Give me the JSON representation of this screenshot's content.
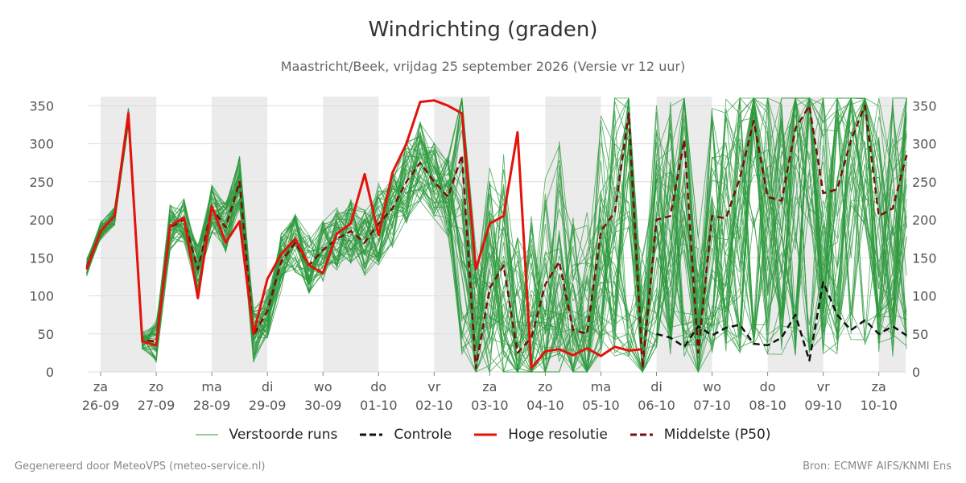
{
  "header": {
    "title": "Windrichting (graden)",
    "subtitle": "Maastricht/Beek, vrijdag 25 september 2026 (Versie vr 12 uur)"
  },
  "footer": {
    "left": "Gegenereerd door MeteoVPS (meteo-service.nl)",
    "right": "Bron: ECMWF AIFS/KNMI Ens"
  },
  "colors": {
    "ensemble": "#2e9a3e",
    "control": "#111111",
    "hires": "#e3120b",
    "median": "#7a0d0d",
    "shade": "#ebebeb",
    "grid": "#dddddd"
  },
  "legend": [
    {
      "key": "ensemble",
      "label": "Verstoorde runs"
    },
    {
      "key": "control",
      "label": "Controle"
    },
    {
      "key": "hires",
      "label": "Hoge resolutie"
    },
    {
      "key": "median",
      "label": "Middelste (P50)"
    }
  ],
  "chart_data": {
    "type": "line",
    "x_unit": "days from 26-09 00:00 (tick = 00 UTC of each day)",
    "xlim": [
      -0.25,
      14.6
    ],
    "ylim": [
      0,
      370
    ],
    "yticks": [
      0,
      50,
      100,
      150,
      200,
      250,
      300,
      350
    ],
    "grid": true,
    "legend_position": "bottom",
    "x_tick_positions": [
      0,
      1,
      2,
      3,
      4,
      5,
      6,
      7,
      8,
      9,
      10,
      11,
      12,
      13,
      14
    ],
    "x_tick_labels": [
      [
        "za",
        "26-09"
      ],
      [
        "zo",
        "27-09"
      ],
      [
        "ma",
        "28-09"
      ],
      [
        "di",
        "29-09"
      ],
      [
        "wo",
        "30-09"
      ],
      [
        "do",
        "01-10"
      ],
      [
        "vr",
        "02-10"
      ],
      [
        "za",
        "03-10"
      ],
      [
        "zo",
        "04-10"
      ],
      [
        "ma",
        "05-10"
      ],
      [
        "di",
        "06-10"
      ],
      [
        "wo",
        "07-10"
      ],
      [
        "do",
        "08-10"
      ],
      [
        "vr",
        "09-10"
      ],
      [
        "za",
        "10-10"
      ]
    ],
    "shaded_days": [
      0,
      2,
      4,
      6,
      8,
      10,
      12,
      14
    ],
    "series": [
      {
        "name": "Hoge resolutie",
        "key": "hires",
        "x": [
          -0.25,
          0,
          0.25,
          0.5,
          0.75,
          1,
          1.25,
          1.5,
          1.75,
          2,
          2.25,
          2.5,
          2.75,
          3,
          3.25,
          3.5,
          3.75,
          4,
          4.25,
          4.5,
          4.75,
          5,
          5.25,
          5.5,
          5.75,
          6,
          6.25,
          6.5,
          6.75,
          7,
          7.25,
          7.5,
          7.75,
          8,
          8.25,
          8.5,
          8.75,
          9,
          9.25,
          9.5,
          9.75
        ],
        "values": [
          135,
          185,
          205,
          340,
          40,
          35,
          192,
          203,
          97,
          218,
          170,
          198,
          50,
          122,
          155,
          175,
          140,
          130,
          182,
          195,
          260,
          180,
          262,
          300,
          355,
          357,
          350,
          340,
          135,
          195,
          205,
          315,
          5,
          27,
          30,
          22,
          31,
          21,
          33,
          28,
          30
        ]
      },
      {
        "name": "Middelste (P50)",
        "key": "median",
        "x": [
          -0.25,
          0,
          0.25,
          0.5,
          0.75,
          1,
          1.25,
          1.5,
          1.75,
          2,
          2.25,
          2.5,
          2.75,
          3,
          3.25,
          3.5,
          3.75,
          4,
          4.25,
          4.5,
          4.75,
          5,
          5.25,
          5.5,
          5.75,
          6,
          6.25,
          6.5,
          6.75,
          7,
          7.25,
          7.5,
          7.75,
          8,
          8.25,
          8.5,
          8.75,
          9,
          9.25,
          9.5,
          9.75,
          10,
          10.25,
          10.5,
          10.75,
          11,
          11.25,
          11.5,
          11.75,
          12,
          12.25,
          12.5,
          12.75,
          13,
          13.25,
          13.5,
          13.75,
          14,
          14.25,
          14.5
        ],
        "values": [
          138,
          185,
          205,
          335,
          42,
          40,
          190,
          200,
          135,
          215,
          190,
          250,
          48,
          80,
          145,
          170,
          140,
          160,
          175,
          185,
          170,
          195,
          215,
          250,
          275,
          250,
          230,
          285,
          5,
          110,
          140,
          25,
          45,
          115,
          145,
          55,
          50,
          185,
          210,
          340,
          5,
          200,
          205,
          305,
          25,
          205,
          202,
          255,
          330,
          230,
          225,
          320,
          350,
          235,
          240,
          305,
          350,
          205,
          215,
          285
        ]
      },
      {
        "name": "Controle",
        "key": "control",
        "x": [
          10,
          10.25,
          10.5,
          10.75,
          11,
          11.25,
          11.5,
          11.75,
          12,
          12.25,
          12.5,
          12.75,
          13,
          13.25,
          13.5,
          13.75,
          14,
          14.25,
          14.5
        ],
        "values": [
          50,
          45,
          33,
          60,
          48,
          58,
          62,
          37,
          35,
          45,
          75,
          15,
          118,
          75,
          55,
          68,
          50,
          60,
          48
        ]
      }
    ],
    "ensemble": {
      "name": "Verstoorde runs",
      "key": "ensemble",
      "members": 50,
      "x_start": -0.25,
      "x_step": 0.25,
      "x_end": 14.5
    }
  }
}
